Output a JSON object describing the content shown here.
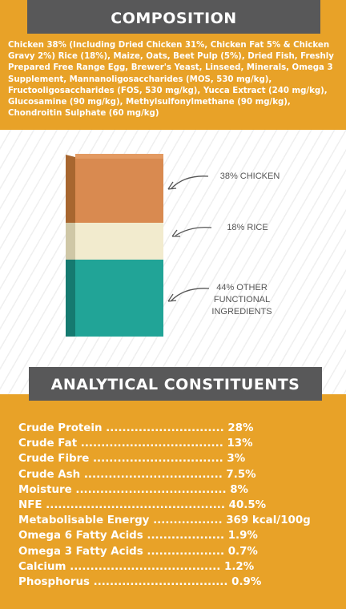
{
  "composition": {
    "title": "COMPOSITION",
    "text": "Chicken 38% (Including Dried Chicken 31%, Chicken Fat 5% & Chicken Gravy 2%) Rice (18%), Maize, Oats, Beet Pulp (5%), Dried Fish, Freshly Prepared Free Range Egg, Brewer's Yeast, Linseed, Minerals, Omega 3 Supplement, Mannanoligosaccharides (MOS, 530 mg/kg), Fructooligosaccharides (FOS, 530 mg/kg), Yucca Extract (240 mg/kg), Glucosamine (90 mg/kg), Methylsulfonylmethane (90 mg/kg), Chondroitin Sulphate (60 mg/kg)"
  },
  "bag": {
    "chicken_label": "38% CHICKEN",
    "rice_label": "18% RICE",
    "other_label_line1": "44% OTHER",
    "other_label_line2": "FUNCTIONAL",
    "other_label_line3": "INGREDIENTS",
    "chicken_color": "#d98a50",
    "rice_color": "#f2ebce",
    "other_color": "#21a497"
  },
  "analytical": {
    "title": "ANALYTICAL CONSTITUENTS",
    "rows": [
      {
        "text": "Crude Protein ............................. 28%"
      },
      {
        "text": "Crude Fat ................................... 13%"
      },
      {
        "text": "Crude Fibre ................................ 3%"
      },
      {
        "text": "Crude Ash .................................. 7.5%"
      },
      {
        "text": "Moisture ..................................... 8%"
      },
      {
        "text": "NFE ............................................ 40.5%"
      },
      {
        "text": "Metabolisable Energy ................. 369 kcal/100g"
      },
      {
        "text": "Omega 6 Fatty Acids ................... 1.9%"
      },
      {
        "text": "Omega 3 Fatty Acids ................... 0.7%"
      },
      {
        "text": "Calcium ..................................... 1.2%"
      },
      {
        "text": "Phosphorus ................................. 0.9%"
      }
    ]
  },
  "colors": {
    "accent": "#e8a228",
    "header_bg": "#585859"
  }
}
